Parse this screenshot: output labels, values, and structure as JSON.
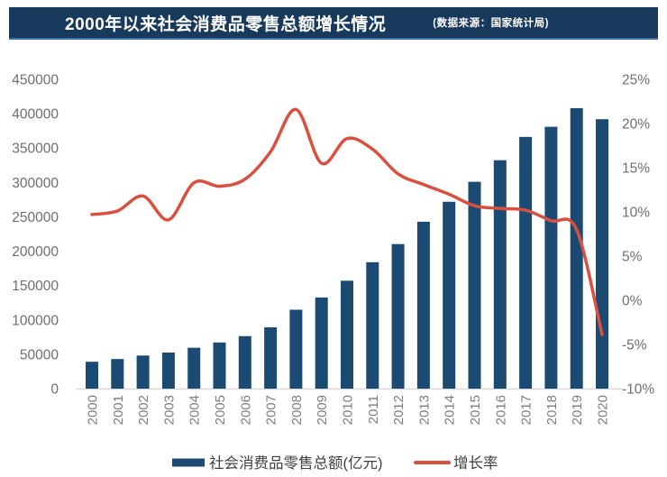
{
  "header": {
    "title": "2000年以来社会消费品零售总额增长情况",
    "source": "(数据来源：国家统计局)",
    "bg_color": "#17395c",
    "accent_color": "#3c72a6",
    "text_color": "#ffffff"
  },
  "chart_data": {
    "type": "bar",
    "title": "2000年以来社会消费品零售总额增长情况",
    "categories": [
      "2000",
      "2001",
      "2002",
      "2003",
      "2004",
      "2005",
      "2006",
      "2007",
      "2008",
      "2009",
      "2010",
      "2011",
      "2012",
      "2013",
      "2014",
      "2015",
      "2016",
      "2017",
      "2018",
      "2019",
      "2020"
    ],
    "series": [
      {
        "name": "社会消费品零售总额(亿元)",
        "type": "bar",
        "axis": "left",
        "color": "#1b4a73",
        "values": [
          39106,
          43055,
          48136,
          52516,
          59501,
          67177,
          76410,
          89210,
          114830,
          132678,
          156998,
          183919,
          210307,
          242843,
          271896,
          300931,
          332316,
          366262,
          380987,
          408017,
          391981
        ]
      },
      {
        "name": "增长率",
        "type": "line",
        "axis": "right",
        "color": "#d9503f",
        "values": [
          9.7,
          10.1,
          11.8,
          9.1,
          13.3,
          12.9,
          13.7,
          16.8,
          21.6,
          15.5,
          18.3,
          17.1,
          14.3,
          13.1,
          12.0,
          10.7,
          10.4,
          10.2,
          9.0,
          8.0,
          -3.9
        ]
      }
    ],
    "left_axis": {
      "min": 0,
      "max": 450000,
      "step": 50000,
      "labels": [
        "0",
        "50000",
        "100000",
        "150000",
        "200000",
        "250000",
        "300000",
        "350000",
        "400000",
        "450000"
      ]
    },
    "right_axis": {
      "min": -10,
      "max": 25,
      "step": 5,
      "labels": [
        "-10%",
        "-5%",
        "0%",
        "5%",
        "10%",
        "15%",
        "20%",
        "25%"
      ]
    },
    "legend": [
      {
        "swatch": "bar",
        "label": "社会消费品零售总额(亿元)"
      },
      {
        "swatch": "line",
        "label": "增长率"
      }
    ],
    "grid": false,
    "legend_position": "bottom",
    "axis_text_color": "#6e6e6e",
    "year_text_color": "#7d7d7d",
    "legend_text_color": "#3f3f3f",
    "baseline_color": "#d9d9d9"
  }
}
